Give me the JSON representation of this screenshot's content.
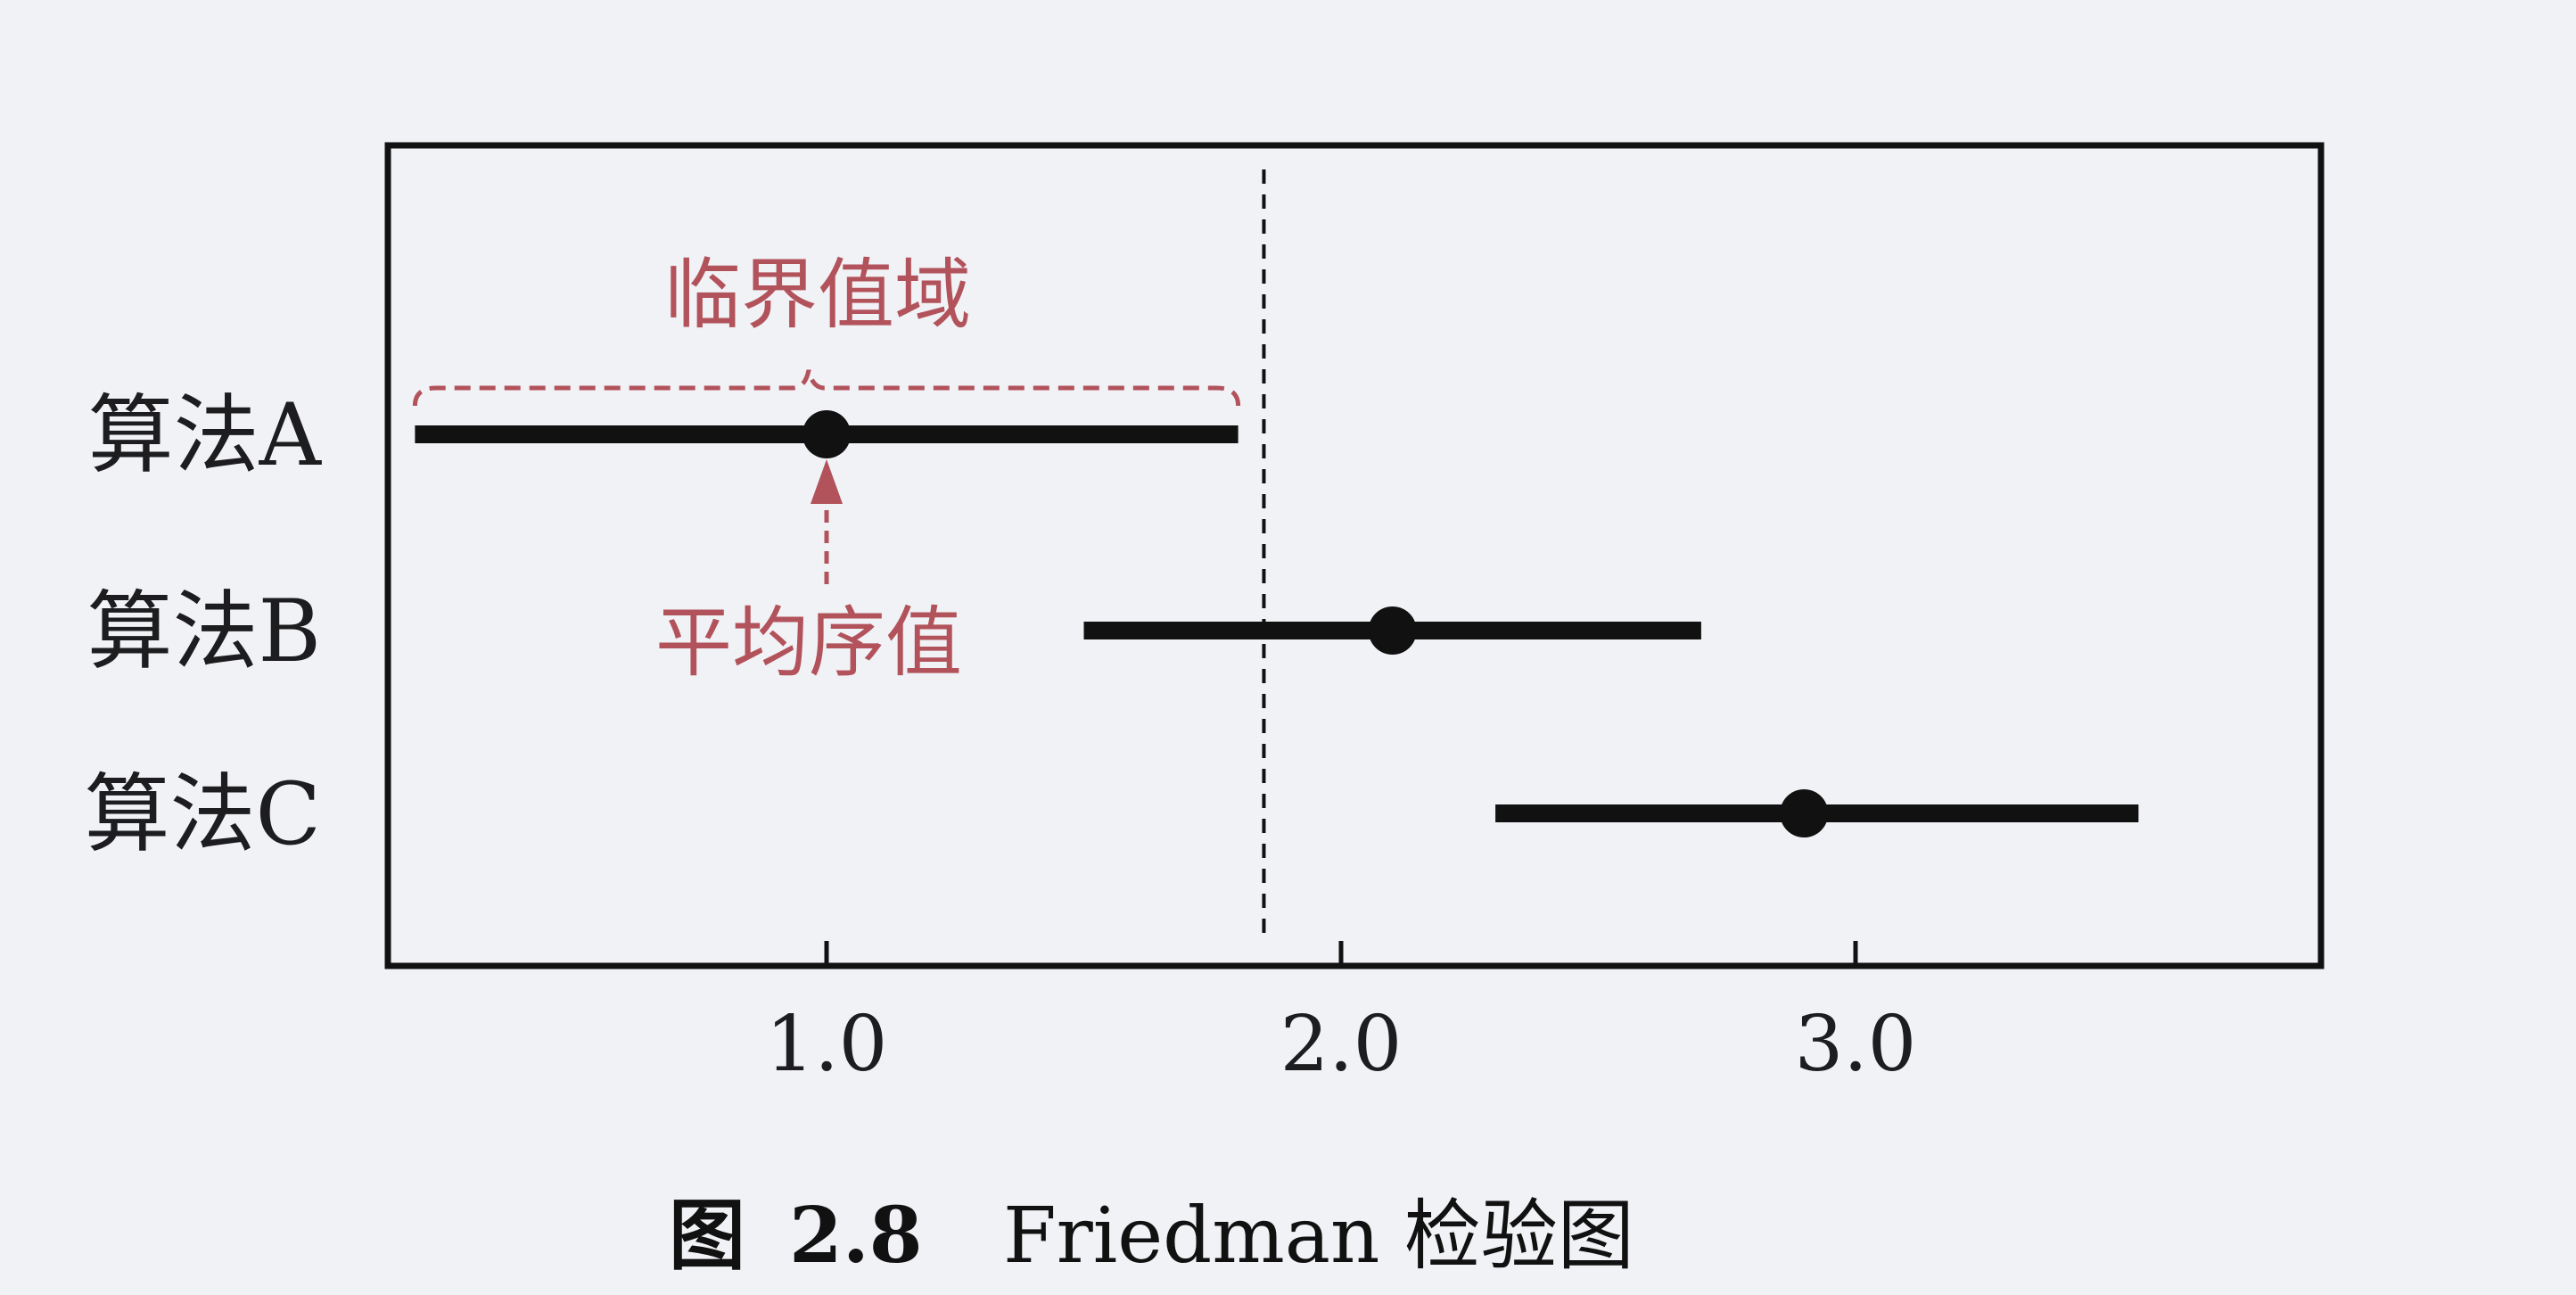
{
  "chart_data": {
    "type": "interval",
    "categories": [
      "算法A",
      "算法B",
      "算法C"
    ],
    "series": [
      {
        "label": "算法A",
        "mean": 1.0,
        "low": 0.2,
        "high": 1.8
      },
      {
        "label": "算法B",
        "mean": 2.1,
        "low": 1.5,
        "high": 2.7
      },
      {
        "label": "算法C",
        "mean": 2.9,
        "low": 2.3,
        "high": 3.55
      }
    ],
    "xticks": [
      1.0,
      2.0,
      3.0
    ],
    "xtick_labels": [
      "1.0",
      "2.0",
      "3.0"
    ],
    "xlim": [
      0.15,
      3.9
    ],
    "critical_line_x": 1.85,
    "annotations": {
      "critical_region": "临界值域",
      "mean_rank": "平均序值"
    },
    "grid": false
  },
  "caption": {
    "label": "图",
    "number": "2.8",
    "text": "Friedman 检验图"
  },
  "colors": {
    "annotation": "#b2535c",
    "marks": "#111111",
    "background": "#f1f2f6"
  }
}
